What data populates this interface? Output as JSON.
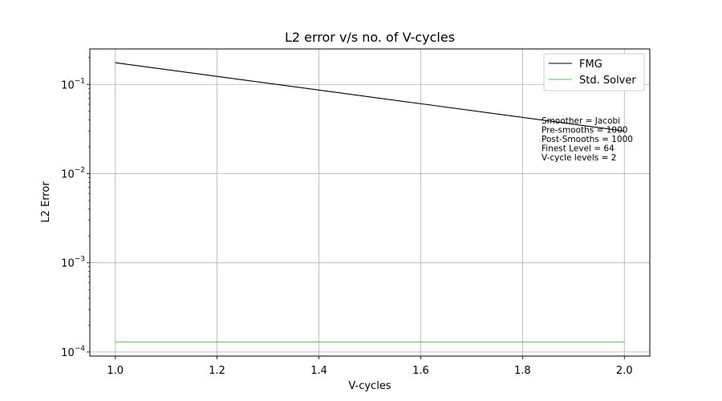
{
  "chart_data": {
    "type": "line",
    "title": "L2 error v/s no. of V-cycles",
    "xlabel": "V-cycles",
    "ylabel": "L2 Error",
    "xscale": "linear",
    "yscale": "log",
    "xlim": [
      0.95,
      2.05
    ],
    "ylim": [
      9e-05,
      0.25
    ],
    "grid": true,
    "legend_position": "top-right",
    "x_ticks": [
      1.0,
      1.2,
      1.4,
      1.6,
      1.8,
      2.0
    ],
    "x_tick_labels": [
      "1.0",
      "1.2",
      "1.4",
      "1.6",
      "1.8",
      "2.0"
    ],
    "y_ticks": [
      0.0001,
      0.001,
      0.01,
      0.1
    ],
    "y_tick_labels": [
      {
        "base": "10",
        "exp": "−4"
      },
      {
        "base": "10",
        "exp": "−3"
      },
      {
        "base": "10",
        "exp": "−2"
      },
      {
        "base": "10",
        "exp": "−1"
      }
    ],
    "series": [
      {
        "name": "FMG",
        "color": "#000000",
        "x": [
          1.0,
          2.0
        ],
        "y": [
          0.175,
          0.03
        ]
      },
      {
        "name": "Std. Solver",
        "color": "#2ca02c",
        "x": [
          1.0,
          2.0
        ],
        "y": [
          0.00013,
          0.00013
        ]
      }
    ],
    "annotation": [
      "Smoother = Jacobi",
      "Pre-smooths = 1000",
      "Post-Smooths = 1000",
      "Finest Level = 64",
      "V-cycle levels = 2"
    ]
  }
}
